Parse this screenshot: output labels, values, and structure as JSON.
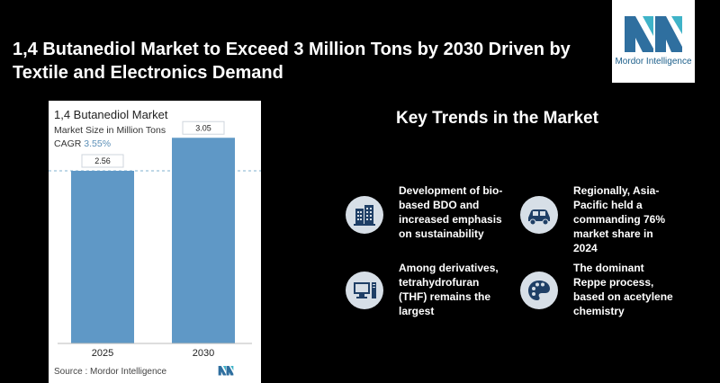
{
  "headline": "1,4 Butanediol Market to Exceed 3 Million Tons by 2030 Driven by Textile and Electronics Demand",
  "logo": {
    "brand": "Mordor Intelligence",
    "icon": "mordor-logo-icon"
  },
  "chart_card": {
    "title": "1,4 Butanediol Market",
    "subtitle": "Market Size in Million Tons",
    "cagr_label": "CAGR",
    "cagr_value": "3.55%",
    "source": "Source :  Mordor Intelligence"
  },
  "chart_data": {
    "type": "bar",
    "title": "1,4 Butanediol Market",
    "ylabel": "Market Size in Million Tons",
    "categories": [
      "2025",
      "2030"
    ],
    "values": [
      2.56,
      3.05
    ],
    "value_labels": [
      "2.56",
      "3.05"
    ],
    "ylim": [
      0,
      3.2
    ],
    "grid": false,
    "reference_line_at_first_value": true
  },
  "trends": {
    "title": "Key Trends in the Market",
    "items": [
      {
        "text": "Development of bio-based BDO and increased emphasis on sustainability",
        "icon": "buildings-icon"
      },
      {
        "text": "Regionally, Asia-Pacific held a commanding 76% market share in 2024",
        "icon": "car-icon"
      },
      {
        "text": "Among derivatives, tetrahydrofuran (THF) remains the largest",
        "icon": "computer-icon"
      },
      {
        "text": "The dominant Reppe process, based on acetylene chemistry",
        "icon": "palette-icon"
      }
    ]
  },
  "colors": {
    "bar": "#5f98c6",
    "bar_top": "#6fa6d2",
    "icon_bg": "#d7dfe7",
    "icon_fg": "#1f3f66",
    "background": "#000000"
  }
}
